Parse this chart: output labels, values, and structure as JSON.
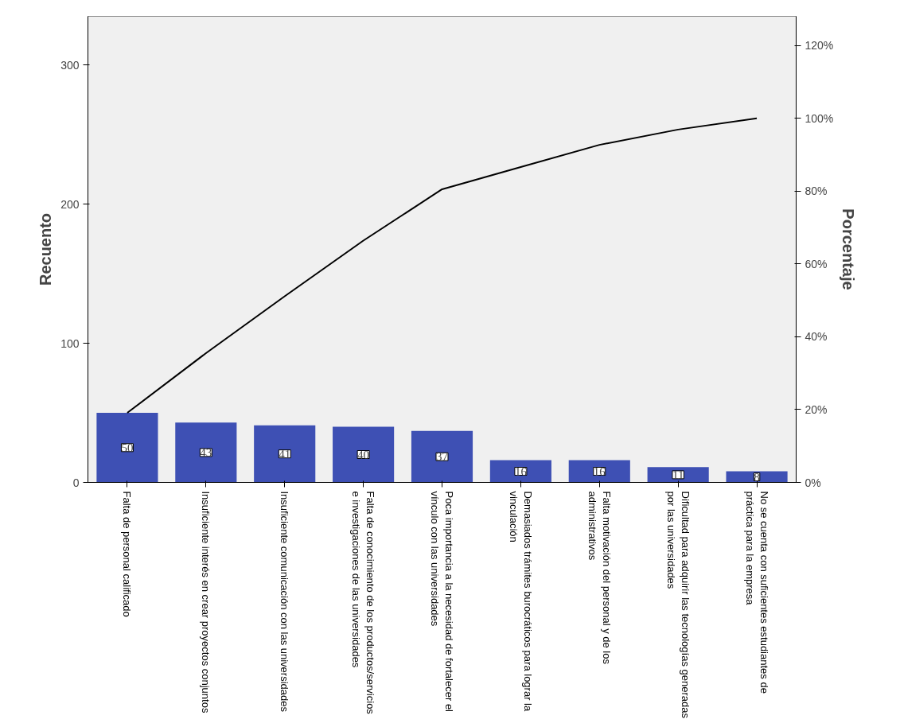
{
  "chart_data": {
    "type": "bar",
    "ylabel": "Recuento",
    "y2label": "Porcentaje",
    "categories": [
      "Falta de personal calificado",
      "Insuficiente interés en crear proyectos conjuntos",
      "Insuficiente comunicación con las universidades",
      "Falta de conocimiento de los productos/servicios\ne investigaciones de las universidades",
      "Poca importancia a la necesidad de fortalecer el\nvínculo con las universidades",
      "Demasiados trámites burocráticos para lograr la\nvinculación",
      "Falta motivación del personal y de los\nadministrativos",
      "Dificultad para adquirir las tecnologías generadas\npor las universidades",
      "No se cuenta con suficientes estudiantes de\npráctica para la empresa"
    ],
    "series": [
      {
        "color": "#3e50b4",
        "values": [
          50,
          43,
          41,
          40,
          37,
          16,
          16,
          11,
          8
        ],
        "data_labels": true
      },
      {
        "type": "line",
        "axis": "y2",
        "color": "#000000",
        "values": [
          19.1,
          35.5,
          51.1,
          66.4,
          80.5,
          86.6,
          92.7,
          96.9,
          100
        ]
      }
    ],
    "ylim": [
      0,
      335
    ],
    "yticks": [
      0,
      100,
      200,
      300
    ],
    "y2lim": [
      0,
      128
    ],
    "y2ticks": [
      {
        "value": 0,
        "label": "0%"
      },
      {
        "value": 20,
        "label": "20%"
      },
      {
        "value": 40,
        "label": "40%"
      },
      {
        "value": 60,
        "label": "60%"
      },
      {
        "value": 80,
        "label": "80%"
      },
      {
        "value": 100,
        "label": "100%"
      },
      {
        "value": 120,
        "label": "120%"
      }
    ],
    "grid": false
  }
}
